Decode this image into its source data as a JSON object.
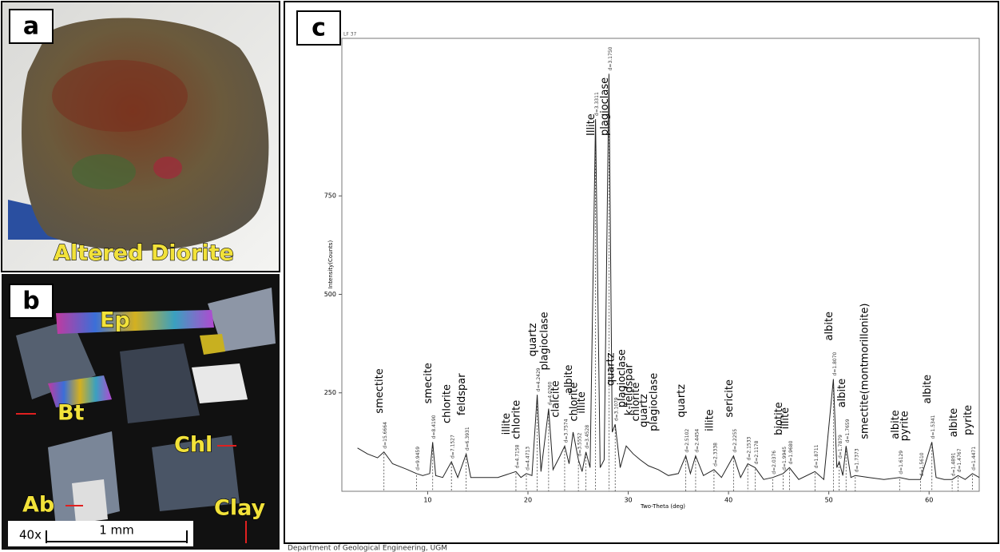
{
  "panel_a": {
    "label": "a",
    "caption": "Altered Diorite"
  },
  "panel_b": {
    "label": "b",
    "labels": [
      "Ep",
      "Bt",
      "Chl",
      "Ab",
      "Clay"
    ],
    "magnification": "40x",
    "scale": "1 mm"
  },
  "panel_c": {
    "label": "c",
    "corner_note": "LF 37"
  },
  "footer": "Department of Geological Engineering, UGM",
  "chart_data": {
    "type": "line",
    "ylabel": "Intensity(Counts)",
    "xlabel": "Two-Theta (deg)",
    "color": "#222222",
    "xlim": [
      2,
      65
    ],
    "ylim": [
      0,
      1150
    ],
    "xticks": [
      10,
      20,
      30,
      40,
      50,
      60
    ],
    "yticks": [
      250,
      500,
      750
    ],
    "x": [
      3,
      4,
      5,
      5.64,
      6.5,
      8,
      8.88,
      9.5,
      10.2,
      10.5,
      10.8,
      11.5,
      12.37,
      13,
      13.84,
      14.3,
      15.5,
      17,
      18.8,
      19.3,
      19.84,
      20.4,
      20.92,
      21.3,
      22.06,
      22.5,
      23.2,
      23.66,
      24.1,
      24.5,
      25.03,
      25.4,
      25.78,
      26.2,
      26.74,
      27.2,
      27.6,
      28.08,
      28.4,
      28.7,
      29.2,
      29.8,
      30.5,
      31.2,
      32,
      33,
      34,
      35,
      35.74,
      36.2,
      36.72,
      37.5,
      38.55,
      39.3,
      40.5,
      41.2,
      41.92,
      42.66,
      43.5,
      44.42,
      45.44,
      46.08,
      47,
      48.62,
      49.5,
      50.46,
      50.8,
      51.04,
      51.4,
      51.72,
      52.2,
      52.64,
      54,
      55.5,
      57.06,
      58,
      59.14,
      60.28,
      60.7,
      61.5,
      62.3,
      62.88,
      63.6,
      64.32,
      65
    ],
    "values": [
      110,
      95,
      85,
      100,
      70,
      55,
      45,
      40,
      45,
      125,
      40,
      35,
      75,
      35,
      95,
      35,
      35,
      35,
      50,
      35,
      45,
      40,
      245,
      50,
      210,
      55,
      90,
      115,
      70,
      150,
      80,
      50,
      100,
      60,
      945,
      60,
      80,
      1060,
      150,
      170,
      60,
      115,
      95,
      80,
      65,
      55,
      40,
      45,
      90,
      45,
      90,
      40,
      55,
      35,
      90,
      35,
      70,
      60,
      30,
      35,
      45,
      60,
      30,
      50,
      30,
      285,
      60,
      75,
      40,
      115,
      35,
      40,
      35,
      30,
      35,
      30,
      30,
      125,
      35,
      30,
      30,
      40,
      30,
      45,
      35
    ],
    "peaks": [
      {
        "x": 5.64,
        "label": "d=15.6664"
      },
      {
        "x": 8.88,
        "label": "d=9.9459"
      },
      {
        "x": 10.5,
        "label": "d=8.4190"
      },
      {
        "x": 12.37,
        "label": "d=7.1527"
      },
      {
        "x": 13.84,
        "label": "d=6.3931"
      },
      {
        "x": 18.8,
        "label": "d=4.7158"
      },
      {
        "x": 19.84,
        "label": "d=4.4713"
      },
      {
        "x": 20.92,
        "label": "d=4.2429"
      },
      {
        "x": 22.06,
        "label": "d=4.0260"
      },
      {
        "x": 23.66,
        "label": "d=3.7574"
      },
      {
        "x": 25.03,
        "label": "d=3.5552"
      },
      {
        "x": 25.78,
        "label": "d=3.4528"
      },
      {
        "x": 26.74,
        "label": "d=3.3311"
      },
      {
        "x": 28.08,
        "label": "d=3.1750"
      },
      {
        "x": 28.7,
        "label": "d=3.1079"
      },
      {
        "x": 35.74,
        "label": "d=2.5102"
      },
      {
        "x": 36.72,
        "label": "d=2.4454"
      },
      {
        "x": 38.55,
        "label": "d=2.3338"
      },
      {
        "x": 40.5,
        "label": "d=2.2255"
      },
      {
        "x": 41.92,
        "label": "d=2.1533"
      },
      {
        "x": 42.66,
        "label": "d=2.1178"
      },
      {
        "x": 44.42,
        "label": "d=2.0376"
      },
      {
        "x": 45.44,
        "label": "d=1.9945"
      },
      {
        "x": 46.08,
        "label": "d=1.9680"
      },
      {
        "x": 48.62,
        "label": "d=1.8711"
      },
      {
        "x": 50.46,
        "label": "d=1.8070"
      },
      {
        "x": 51.04,
        "label": "d=1.7879"
      },
      {
        "x": 51.72,
        "label": "d=1.7659"
      },
      {
        "x": 52.64,
        "label": "d=1.7373"
      },
      {
        "x": 57.06,
        "label": "d=1.6129"
      },
      {
        "x": 59.14,
        "label": "d=1.5610"
      },
      {
        "x": 60.28,
        "label": "d=1.5341"
      },
      {
        "x": 62.3,
        "label": "d=1.4891"
      },
      {
        "x": 62.88,
        "label": "d=1.4767"
      },
      {
        "x": 64.32,
        "label": "d=1.4471"
      }
    ],
    "annotations": [
      {
        "x": 5.64,
        "label": "smectite"
      },
      {
        "x": 10.5,
        "label": "smecite"
      },
      {
        "x": 12.37,
        "label": "chlorite"
      },
      {
        "x": 13.84,
        "label": "feldspar"
      },
      {
        "x": 18.3,
        "label": "illite"
      },
      {
        "x": 19.3,
        "label": "chlorite"
      },
      {
        "x": 20.92,
        "label": "quartz"
      },
      {
        "x": 22.06,
        "label": "plagioclase"
      },
      {
        "x": 23.2,
        "label": "clalcite"
      },
      {
        "x": 24.5,
        "label": "albite"
      },
      {
        "x": 25.03,
        "label": "chlorite"
      },
      {
        "x": 25.78,
        "label": "illite"
      },
      {
        "x": 26.74,
        "label": "Illite"
      },
      {
        "x": 28.08,
        "label": "plagioclase"
      },
      {
        "x": 28.7,
        "label": "quartz"
      },
      {
        "x": 29.8,
        "label": "plagioclase"
      },
      {
        "x": 30.5,
        "label": "k-feldspar"
      },
      {
        "x": 31.2,
        "label": "chlorite"
      },
      {
        "x": 32,
        "label": "quartz"
      },
      {
        "x": 33,
        "label": "plagioclase"
      },
      {
        "x": 35.74,
        "label": "quartz"
      },
      {
        "x": 38.55,
        "label": "illite"
      },
      {
        "x": 40.5,
        "label": "sericite"
      },
      {
        "x": 45.44,
        "label": "biotite"
      },
      {
        "x": 46.08,
        "label": "illite"
      },
      {
        "x": 50.46,
        "label": "albite"
      },
      {
        "x": 51.72,
        "label": "albite"
      },
      {
        "x": 54,
        "label": "smectite(montmorillonite)"
      },
      {
        "x": 57.06,
        "label": "albite"
      },
      {
        "x": 58,
        "label": "pyrite"
      },
      {
        "x": 60.28,
        "label": "albite"
      },
      {
        "x": 62.88,
        "label": "albite"
      },
      {
        "x": 64.32,
        "label": "pyrite"
      }
    ]
  }
}
